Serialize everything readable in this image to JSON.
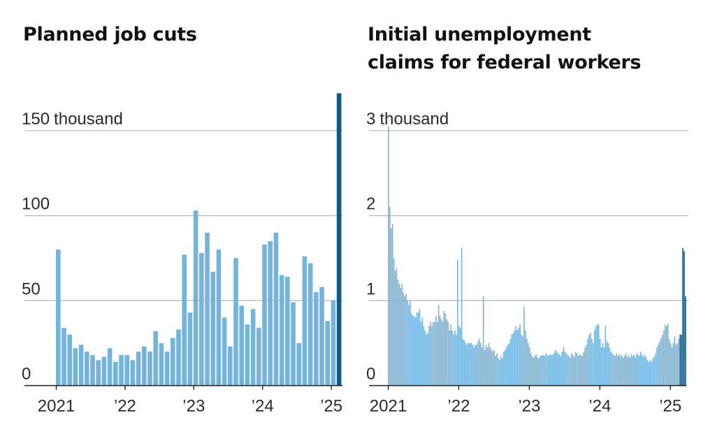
{
  "colors": {
    "bar": "#74b3da",
    "highlight": "#0f5a86",
    "grid": "#bdbdbd",
    "axis": "#222222"
  },
  "chart_data": [
    {
      "type": "bar",
      "title": "Planned job cuts",
      "ylabel_unit": "thousand",
      "ylim": [
        0,
        172
      ],
      "yticks": [
        {
          "value": 0,
          "label": "0"
        },
        {
          "value": 50,
          "label": "50"
        },
        {
          "value": 100,
          "label": "100"
        },
        {
          "value": 150,
          "label": "150",
          "suffix": "thousand"
        }
      ],
      "xticks": [
        {
          "index": 0,
          "label": "2021"
        },
        {
          "index": 12,
          "label": "’22"
        },
        {
          "index": 24,
          "label": "’23"
        },
        {
          "index": 36,
          "label": "’24"
        },
        {
          "index": 48,
          "label": "’25"
        }
      ],
      "x_start": "2021-01",
      "values": [
        80,
        34,
        30,
        22,
        24,
        20,
        18,
        15,
        17,
        22,
        14,
        18,
        18,
        15,
        20,
        23,
        20,
        32,
        25,
        20,
        28,
        33,
        77,
        43,
        103,
        78,
        90,
        67,
        80,
        40,
        23,
        75,
        47,
        36,
        45,
        34,
        83,
        85,
        90,
        65,
        64,
        49,
        25,
        76,
        72,
        55,
        58,
        38,
        50,
        172
      ],
      "highlight_last": 1
    },
    {
      "type": "bar",
      "title": "Initial unemployment claims for federal workers",
      "ylabel_unit": "thousand",
      "ylim": [
        0,
        3.1
      ],
      "yticks": [
        {
          "value": 0,
          "label": "0"
        },
        {
          "value": 1,
          "label": "1"
        },
        {
          "value": 2,
          "label": "2"
        },
        {
          "value": 3,
          "label": "3",
          "suffix": "thousand"
        }
      ],
      "xticks": [
        {
          "index": 0,
          "label": "2021"
        },
        {
          "index": 52,
          "label": "’22"
        },
        {
          "index": 104,
          "label": "’23"
        },
        {
          "index": 156,
          "label": "’24"
        },
        {
          "index": 208,
          "label": "’25"
        }
      ],
      "x_start": "2021-01 (weekly)",
      "values": [
        3.05,
        2.1,
        1.85,
        1.9,
        1.5,
        1.35,
        1.38,
        1.25,
        1.2,
        1.15,
        1.2,
        1.1,
        1.05,
        1.08,
        1.0,
        0.95,
        1.0,
        0.85,
        0.82,
        0.82,
        0.8,
        0.86,
        0.86,
        0.9,
        0.75,
        0.8,
        0.7,
        0.65,
        0.6,
        0.62,
        0.7,
        0.75,
        0.7,
        0.75,
        0.75,
        0.82,
        0.75,
        0.95,
        0.82,
        0.78,
        0.75,
        0.88,
        0.85,
        0.78,
        0.75,
        0.65,
        0.72,
        0.65,
        0.6,
        0.65,
        0.6,
        1.48,
        0.7,
        0.68,
        1.62,
        0.55,
        0.53,
        0.5,
        0.48,
        0.5,
        0.5,
        0.5,
        0.48,
        0.45,
        0.48,
        0.48,
        0.52,
        0.55,
        0.5,
        0.45,
        1.05,
        0.42,
        0.48,
        0.45,
        0.5,
        0.45,
        0.42,
        0.4,
        0.42,
        0.35,
        0.38,
        0.32,
        0.3,
        0.35,
        0.32,
        0.4,
        0.42,
        0.45,
        0.48,
        0.5,
        0.55,
        0.6,
        0.62,
        0.65,
        0.7,
        0.65,
        0.68,
        0.72,
        0.6,
        0.58,
        0.93,
        0.65,
        0.55,
        0.5,
        0.45,
        0.38,
        0.35,
        0.33,
        0.35,
        0.37,
        0.33,
        0.32,
        0.35,
        0.36,
        0.36,
        0.35,
        0.38,
        0.36,
        0.35,
        0.37,
        0.36,
        0.36,
        0.38,
        0.42,
        0.4,
        0.38,
        0.37,
        0.35,
        0.4,
        0.45,
        0.4,
        0.38,
        0.36,
        0.35,
        0.33,
        0.38,
        0.36,
        0.34,
        0.4,
        0.38,
        0.35,
        0.37,
        0.36,
        0.35,
        0.4,
        0.45,
        0.48,
        0.55,
        0.6,
        0.62,
        0.55,
        0.5,
        0.65,
        0.7,
        0.72,
        0.72,
        0.55,
        0.45,
        0.5,
        0.45,
        0.7,
        0.52,
        0.5,
        0.45,
        0.4,
        0.38,
        0.36,
        0.35,
        0.38,
        0.35,
        0.37,
        0.34,
        0.36,
        0.33,
        0.35,
        0.38,
        0.34,
        0.36,
        0.33,
        0.37,
        0.35,
        0.36,
        0.33,
        0.38,
        0.36,
        0.35,
        0.4,
        0.36,
        0.34,
        0.36,
        0.33,
        0.3,
        0.28,
        0.3,
        0.28,
        0.32,
        0.34,
        0.38,
        0.45,
        0.48,
        0.52,
        0.56,
        0.6,
        0.65,
        0.72,
        0.7,
        0.73,
        0.55,
        0.5,
        0.45,
        0.5,
        0.58,
        0.48,
        0.5,
        0.55,
        0.6,
        0.6,
        1.62,
        1.58,
        1.05
      ],
      "highlight_last": 5
    }
  ]
}
